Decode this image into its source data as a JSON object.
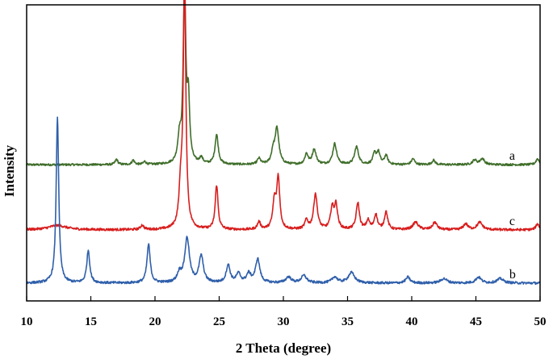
{
  "chart_data": {
    "type": "line",
    "xlabel": "2 Theta (degree)",
    "ylabel": "Intensity",
    "xlim": [
      10,
      50
    ],
    "xticks": [
      10,
      15,
      20,
      25,
      30,
      35,
      40,
      45,
      50
    ],
    "ylim": [
      0,
      100
    ],
    "yticks_shown": false,
    "grid": false,
    "legend": "none; series labels placed at right end of each trace",
    "series": [
      {
        "name": "a",
        "color": "#3f6e2a",
        "baseline": 46,
        "noise": 0.35,
        "peaks": [
          [
            17.0,
            1.8,
            0.12
          ],
          [
            18.3,
            1.5,
            0.12
          ],
          [
            19.2,
            1.0,
            0.12
          ],
          [
            21.9,
            8,
            0.15
          ],
          [
            22.3,
            60,
            0.12
          ],
          [
            22.6,
            20,
            0.12
          ],
          [
            23.6,
            2,
            0.15
          ],
          [
            24.8,
            10,
            0.15
          ],
          [
            28.1,
            2,
            0.15
          ],
          [
            29.5,
            12,
            0.18
          ],
          [
            29.2,
            4,
            0.15
          ],
          [
            31.8,
            3.5,
            0.15
          ],
          [
            32.4,
            5,
            0.18
          ],
          [
            34.0,
            7,
            0.18
          ],
          [
            35.7,
            6,
            0.18
          ],
          [
            37.1,
            3.5,
            0.15
          ],
          [
            37.4,
            4,
            0.15
          ],
          [
            38.0,
            3,
            0.15
          ],
          [
            40.1,
            2,
            0.15
          ],
          [
            41.7,
            1.5,
            0.15
          ],
          [
            44.9,
            1.5,
            0.2
          ],
          [
            45.5,
            2,
            0.2
          ],
          [
            49.8,
            2,
            0.15
          ]
        ]
      },
      {
        "name": "c",
        "color": "#d81e1e",
        "baseline": 24,
        "noise": 0.4,
        "peaks": [
          [
            12.4,
            1.5,
            0.8
          ],
          [
            19.0,
            1.5,
            0.15
          ],
          [
            22.3,
            83,
            0.12
          ],
          [
            22.0,
            12,
            0.15
          ],
          [
            24.8,
            15,
            0.13
          ],
          [
            28.1,
            2.5,
            0.15
          ],
          [
            29.3,
            9,
            0.15
          ],
          [
            29.6,
            17,
            0.14
          ],
          [
            31.8,
            3,
            0.15
          ],
          [
            32.5,
            12,
            0.17
          ],
          [
            33.8,
            7,
            0.15
          ],
          [
            34.1,
            8,
            0.15
          ],
          [
            35.8,
            9,
            0.15
          ],
          [
            36.6,
            3,
            0.15
          ],
          [
            37.2,
            5,
            0.15
          ],
          [
            38.0,
            6,
            0.15
          ],
          [
            40.3,
            2.5,
            0.25
          ],
          [
            41.8,
            2.5,
            0.2
          ],
          [
            44.2,
            2,
            0.2
          ],
          [
            45.3,
            2.5,
            0.25
          ],
          [
            49.8,
            2,
            0.15
          ]
        ]
      },
      {
        "name": "b",
        "color": "#2f5faa",
        "baseline": 6,
        "noise": 0.4,
        "peaks": [
          [
            12.4,
            56,
            0.12
          ],
          [
            14.8,
            11,
            0.14
          ],
          [
            19.5,
            13,
            0.15
          ],
          [
            21.9,
            3,
            0.2
          ],
          [
            22.5,
            15,
            0.22
          ],
          [
            23.6,
            9,
            0.2
          ],
          [
            25.7,
            6,
            0.18
          ],
          [
            26.5,
            3,
            0.2
          ],
          [
            27.3,
            3,
            0.2
          ],
          [
            28.0,
            8,
            0.2
          ],
          [
            30.4,
            2,
            0.25
          ],
          [
            31.6,
            2.5,
            0.25
          ],
          [
            34.0,
            2,
            0.25
          ],
          [
            35.3,
            3.5,
            0.3
          ],
          [
            39.7,
            2,
            0.2
          ],
          [
            42.5,
            1.5,
            0.3
          ],
          [
            45.2,
            2,
            0.25
          ],
          [
            46.9,
            1.5,
            0.3
          ]
        ]
      }
    ],
    "series_labels": [
      "a",
      "c",
      "b"
    ]
  }
}
